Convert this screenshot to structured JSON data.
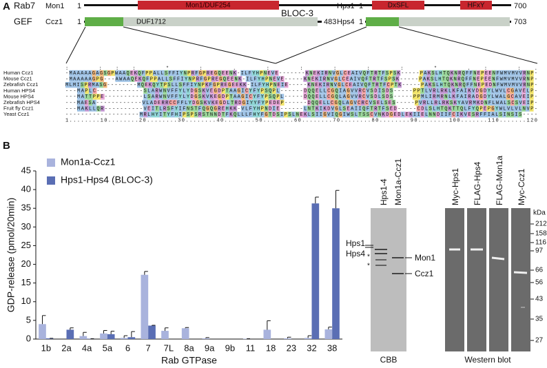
{
  "panel_labels": [
    "A",
    "B"
  ],
  "domains": {
    "groups": [
      "Rab7",
      "GEF",
      "BLOC-3"
    ],
    "proteins": [
      {
        "name": "Mon1",
        "start": 1,
        "end": 555,
        "domains": [
          "Mon1/DUF254"
        ]
      },
      {
        "name": "Ccz1",
        "start": 1,
        "end": 483,
        "domains": [
          "DUF1712"
        ]
      },
      {
        "name": "Hps1",
        "start": 1,
        "end": 700,
        "domains": [
          "DxSFL",
          "HFxY"
        ]
      },
      {
        "name": "Hps4",
        "start": 1,
        "end": 703,
        "domains": []
      }
    ]
  },
  "alignment": {
    "conservation": "                                :  :::          *  :  .  : :  :            : :          * .:                :.        ",
    "rows": [
      {
        "species": "Human Ccz1",
        "sequence": "-MAAAAAGAGSGPWAAQEKQFPPALLSFFIYNPRFGPREGQEENK-ILFYHPNEVE-------KNEKIRNVGLCEAIVQFTRTFSPSK-----PAKSLHTQKNRQFFNEPEENFWMVMVVRNP-"
      },
      {
        "species": "Mouse Ccz1",
        "sequence": "-MAAAAAGPG---AWAAQEKQFPPALLSFFIYNPRFGPREGQEENK-ILFYHPNEVE-----KNEKIRNVGLCEAIVQFTRTFSPSK-----PAKSLHTQKNRQFFNEPEENFWMVMVVRNP-"
      },
      {
        "species": "Zebrafish Ccz1",
        "sequence": "MLMISPRMASG--------MQEKQYTPSLLSFFIYNPKFGPREGEEKK-ILFYHPNEIE-----KNEKIRNVGLCEAIVQFTRTFCPTK-----PAKSLHTQKNRQFFNEPEDNFWMVMVVRNP-"
      },
      {
        "species": "Human HPS4",
        "sequence": "---MAPLC------------SLARWNVFFYLYDGSKVEGDPTAAGICYFYPSQPL------DQQELLCGQIAGVVRCVSDISDS-----PPTLVRLRKLKFAIKVDGDYLWVLCGAVELP-"
      },
      {
        "species": "Mouse HPS4",
        "sequence": "---MATTPPE----------LSARWNVFFYLYDGSKVKEGDPTAAGICYFYPSQPL-----DQQELLCGQLAGVVRCVSDLSDS-----PPMLIRMRNLKFAIRADGDYLWALGCAVEIP-"
      },
      {
        "species": "Zebrafish HPS4",
        "sequence": "---MAESA------------VLADERRCCFFLYDGSKVKEGDLTRDGIYYFYPEDEP------DQQELLCGQLAGVCRCVSELSES-----PVRLLRLRKSKYAVRMKDNFLWALSCSVEIP-"
      },
      {
        "species": "Fruit fly Ccz1",
        "sequence": "---MAKLLQR----------VEITLRSFYIFNSTFQGQGREHKK-VLFYHPNDIE------LNTKIKDVGLSEAIIQFTRTFSED-----CDLSLHTQKTTQLFYQPEPGYWLVLVLNVP-"
      },
      {
        "species": "Yeast Ccz1",
        "sequence": "-------------------MRLHYITYFHIPSPSRSTNNDTFKQLLLFHYFGTDSIPSLNEKLSIIGVIQGIWSLTSSCVNKDGEDLEKIIELNNDIIFCIKVESRFFIALSINSIS----"
      }
    ],
    "ruler": "1........10........20........30........40........50........60........70........80........90........100.......110.......120"
  },
  "chart_data": {
    "type": "bar",
    "y_label": "GDP-release (pmol/20min)",
    "x_label": "Rab GTPase",
    "categories": [
      "1b",
      "2a",
      "4a",
      "5a",
      "6",
      "7",
      "7L",
      "8a",
      "9a",
      "9b",
      "11",
      "18",
      "23",
      "32",
      "38"
    ],
    "series": [
      {
        "name": "Mon1a-Ccz1",
        "color": "#a9b3dd",
        "values": [
          4.0,
          0,
          0.8,
          1.5,
          0.3,
          17.2,
          2.2,
          2.9,
          0.2,
          0,
          0.1,
          2.5,
          0.2,
          0.3,
          2.6
        ],
        "errors": [
          2.3,
          0,
          1.0,
          0.8,
          0.6,
          0.9,
          0.8,
          0.2,
          0.2,
          0,
          0,
          2.4,
          0.3,
          0.6,
          0.6
        ]
      },
      {
        "name": "Hps1-Hps4 (BLOC-3)",
        "color": "#5a6eb4",
        "values": [
          0.2,
          2.5,
          0.1,
          1.3,
          0.5,
          3.6,
          0,
          0,
          0,
          0,
          0,
          0,
          0,
          36.3,
          35.0
        ],
        "errors": [
          0,
          0.5,
          0,
          0.8,
          1.5,
          0.1,
          0,
          0,
          0,
          0,
          0,
          0,
          0,
          1.7,
          4.8
        ]
      }
    ],
    "ylim": [
      0,
      45
    ],
    "yticks": [
      0,
      5,
      10,
      15,
      20,
      25,
      30,
      35,
      40,
      45
    ],
    "legend": "upper left"
  },
  "gels": {
    "cbb": {
      "lanes": [
        "Hps1-4",
        "Mon1a-Ccz1"
      ],
      "left_labels": [
        "Hps1",
        "Hps4",
        "*",
        "*"
      ],
      "right_labels": [
        "Mon1",
        "Ccz1"
      ],
      "caption": "CBB"
    },
    "western": {
      "lanes": [
        "Myc-Hps1",
        "FLAG-Hps4",
        "FLAG-Mon1a",
        "Myc-Ccz1"
      ],
      "unit": "kDa",
      "markers": [
        212,
        158,
        116,
        97,
        66,
        56,
        43,
        35,
        27
      ],
      "caption": "Western blot"
    }
  }
}
